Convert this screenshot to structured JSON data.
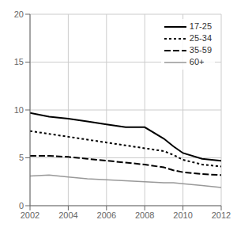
{
  "chart_data": {
    "type": "line",
    "x": [
      2002,
      2003,
      2004,
      2005,
      2006,
      2007,
      2008,
      2009,
      2009.5,
      2010,
      2011,
      2012
    ],
    "xlim": [
      2002,
      2012
    ],
    "xticks": [
      2002,
      2004,
      2006,
      2008,
      2010,
      2012
    ],
    "ylim": [
      0,
      20
    ],
    "yticks": [
      0,
      5,
      10,
      15,
      20
    ],
    "grid": true,
    "legend": "upper right",
    "series": [
      {
        "name": "17-25",
        "color": "#000000",
        "line_style": "solid",
        "values": [
          9.7,
          9.3,
          9.1,
          8.8,
          8.5,
          8.2,
          8.2,
          7.0,
          6.2,
          5.5,
          4.9,
          4.7
        ]
      },
      {
        "name": "25-34",
        "color": "#000000",
        "line_style": "dotted",
        "values": [
          7.8,
          7.5,
          7.2,
          6.9,
          6.6,
          6.3,
          6.0,
          5.7,
          5.3,
          4.8,
          4.3,
          4.1
        ]
      },
      {
        "name": "35-59",
        "color": "#000000",
        "line_style": "dashed",
        "values": [
          5.2,
          5.2,
          5.1,
          4.9,
          4.7,
          4.5,
          4.3,
          4.0,
          3.7,
          3.5,
          3.3,
          3.2
        ]
      },
      {
        "name": "60+",
        "color": "#999999",
        "line_style": "solid",
        "values": [
          3.1,
          3.2,
          3.0,
          2.8,
          2.7,
          2.6,
          2.5,
          2.4,
          2.4,
          2.3,
          2.1,
          1.9
        ]
      }
    ]
  }
}
